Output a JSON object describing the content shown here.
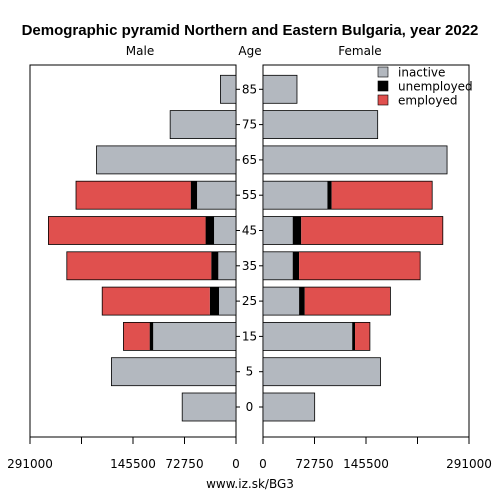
{
  "chart_data": {
    "type": "bar",
    "title": "Demographic pyramid Northern and Eastern Bulgaria, year 2022",
    "left_label": "Male",
    "center_label": "Age",
    "right_label": "Female",
    "footer": "www.iz.sk/BG3",
    "age_groups": [
      "0",
      "5",
      "15",
      "25",
      "35",
      "45",
      "55",
      "65",
      "75",
      "85"
    ],
    "left_axis_ticks": [
      "291000",
      "145500",
      "72750",
      "0"
    ],
    "right_axis_ticks": [
      "0",
      "72750",
      "145500",
      "291000"
    ],
    "axis_max": 291000,
    "legend": [
      {
        "name": "inactive",
        "color": "#b3b8bf"
      },
      {
        "name": "unemployed",
        "color": "#000000"
      },
      {
        "name": "employed",
        "color": "#e0504e"
      }
    ],
    "male": [
      {
        "age": "0",
        "inactive": 76000,
        "unemployed": 0,
        "employed": 0
      },
      {
        "age": "5",
        "inactive": 176000,
        "unemployed": 0,
        "employed": 0
      },
      {
        "age": "15",
        "inactive": 117000,
        "unemployed": 5000,
        "employed": 37000
      },
      {
        "age": "25",
        "inactive": 24000,
        "unemployed": 13000,
        "employed": 152000
      },
      {
        "age": "35",
        "inactive": 25000,
        "unemployed": 10000,
        "employed": 204000
      },
      {
        "age": "45",
        "inactive": 31000,
        "unemployed": 12000,
        "employed": 222000
      },
      {
        "age": "55",
        "inactive": 55000,
        "unemployed": 9000,
        "employed": 162000
      },
      {
        "age": "65",
        "inactive": 197000,
        "unemployed": 0,
        "employed": 0
      },
      {
        "age": "75",
        "inactive": 93000,
        "unemployed": 0,
        "employed": 0
      },
      {
        "age": "85",
        "inactive": 22000,
        "unemployed": 0,
        "employed": 0
      }
    ],
    "female": [
      {
        "age": "0",
        "inactive": 73000,
        "unemployed": 0,
        "employed": 0
      },
      {
        "age": "5",
        "inactive": 166000,
        "unemployed": 0,
        "employed": 0
      },
      {
        "age": "15",
        "inactive": 126000,
        "unemployed": 4000,
        "employed": 21000
      },
      {
        "age": "25",
        "inactive": 51000,
        "unemployed": 8000,
        "employed": 121000
      },
      {
        "age": "35",
        "inactive": 42000,
        "unemployed": 9000,
        "employed": 171000
      },
      {
        "age": "45",
        "inactive": 42000,
        "unemployed": 12000,
        "employed": 200000
      },
      {
        "age": "55",
        "inactive": 91000,
        "unemployed": 6000,
        "employed": 142000
      },
      {
        "age": "65",
        "inactive": 260000,
        "unemployed": 0,
        "employed": 0
      },
      {
        "age": "75",
        "inactive": 162000,
        "unemployed": 0,
        "employed": 0
      },
      {
        "age": "85",
        "inactive": 48000,
        "unemployed": 0,
        "employed": 0
      }
    ]
  }
}
